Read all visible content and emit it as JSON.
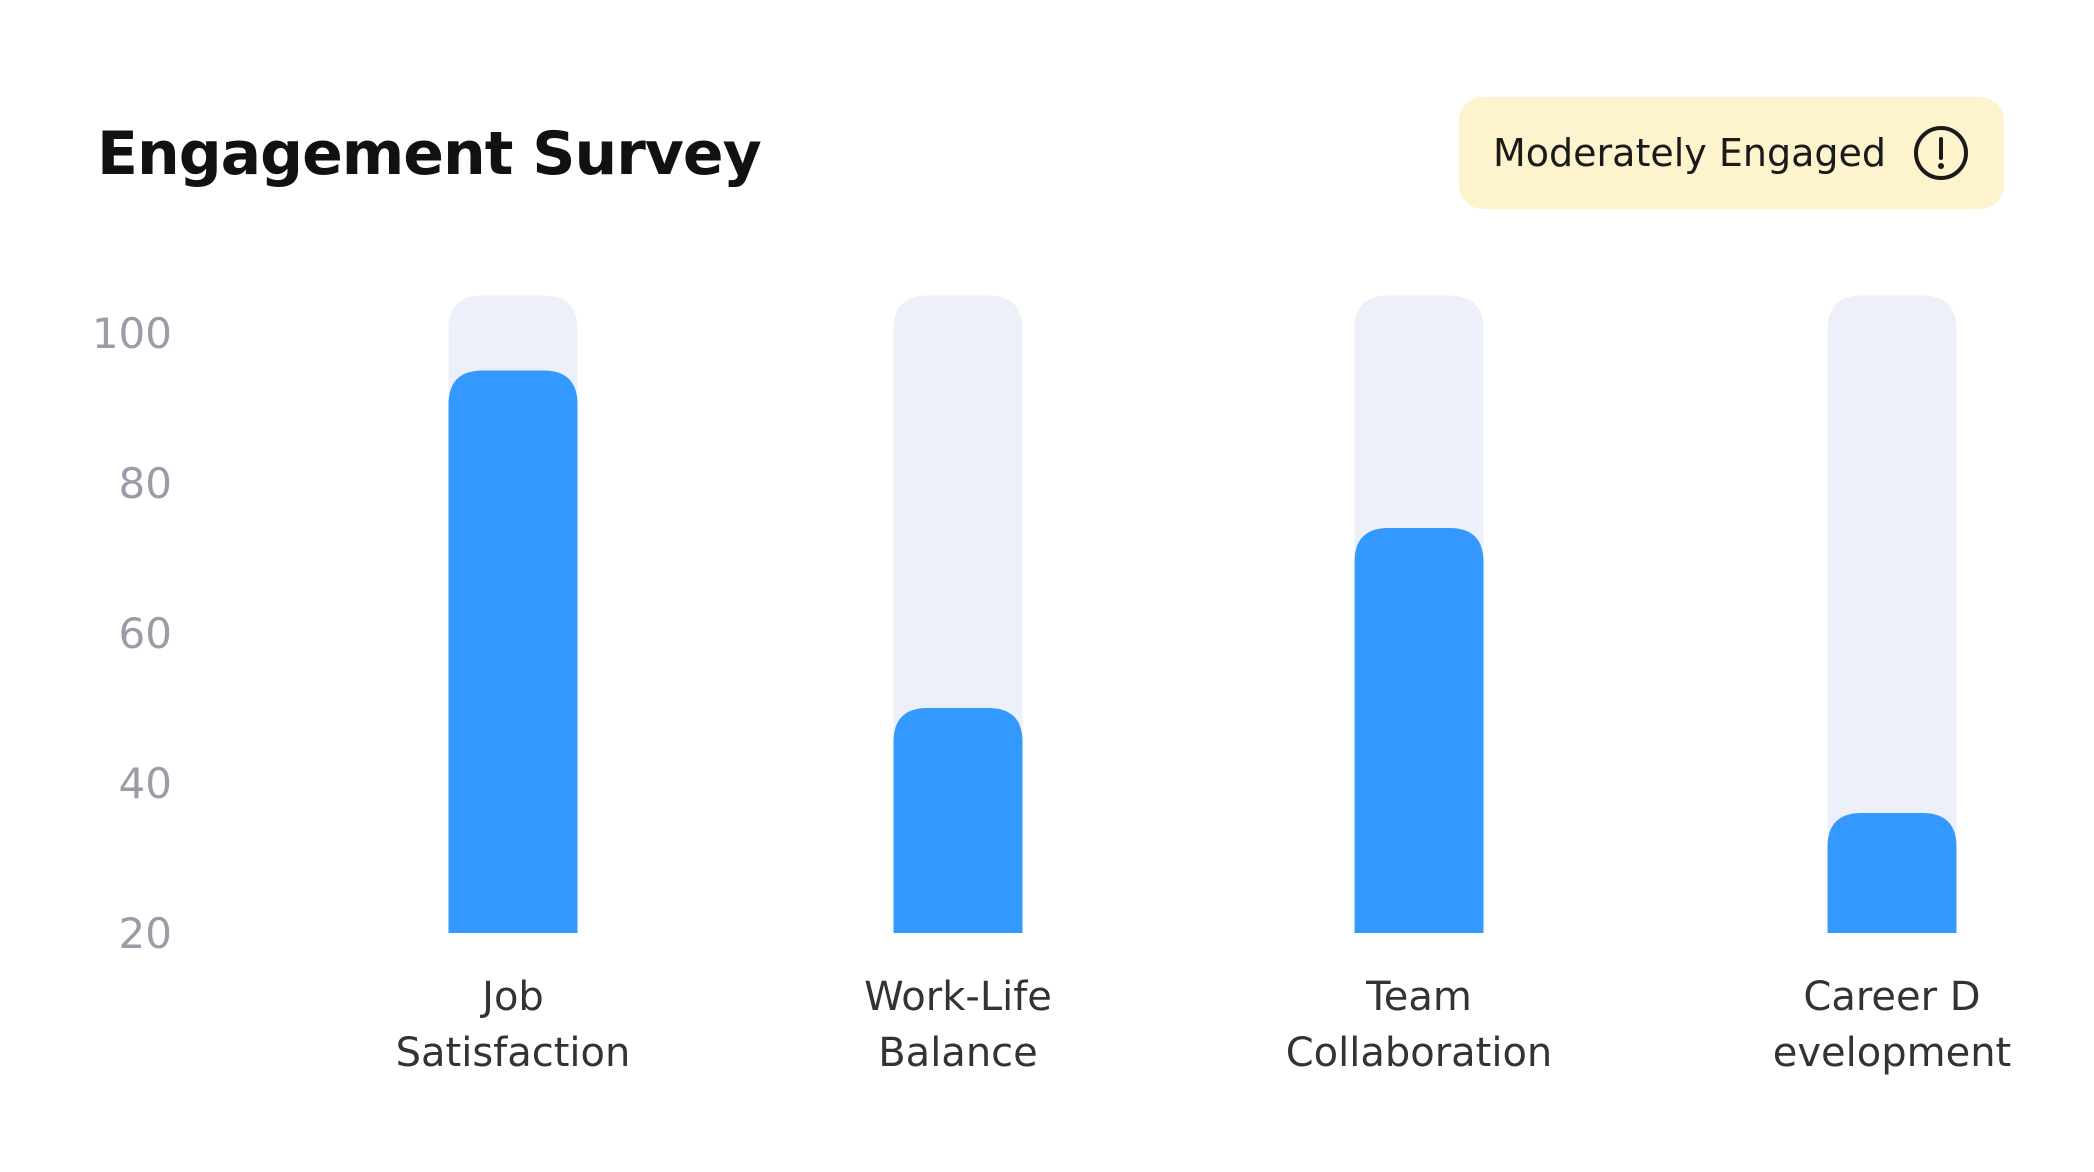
{
  "header": {
    "title": "Engagement Survey",
    "status_badge": "Moderately Engaged",
    "status_icon": "alert-circle-icon"
  },
  "colors": {
    "bar": "#3399ff",
    "track": "#eef0f9",
    "badge_bg": "#fdf3cc",
    "tick": "#9a9ca8"
  },
  "chart_data": {
    "type": "bar",
    "categories": [
      "Job Satisfaction",
      "Work-Life Balance",
      "Team Collaboration",
      "Career Development"
    ],
    "category_lines": [
      [
        "Job",
        "Satisfaction"
      ],
      [
        "Work-Life",
        "Balance"
      ],
      [
        "Team",
        "Collaboration"
      ],
      [
        "Career D",
        "evelopment"
      ]
    ],
    "values": [
      95,
      50,
      74,
      36
    ],
    "track_max": 105,
    "ylim": [
      20,
      105
    ],
    "yticks": [
      100,
      80,
      60,
      40,
      20
    ],
    "grid": false,
    "legend": "none",
    "title": "",
    "xlabel": "",
    "ylabel": ""
  }
}
